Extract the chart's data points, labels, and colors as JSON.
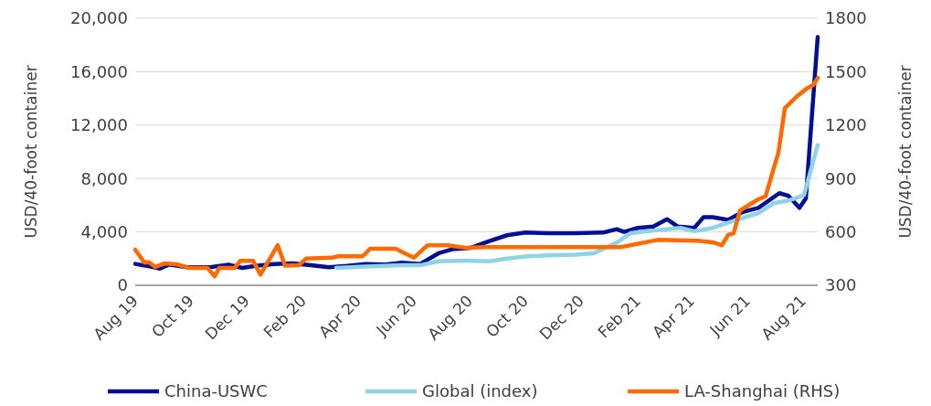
{
  "chart_data": {
    "type": "line",
    "ylabel": "USD/40-foot container",
    "y2label": "USD/40-foot container",
    "xlim": [
      "2019-08-01",
      "2021-08-17"
    ],
    "xticks": [
      {
        "value": "2019-08-01",
        "label": "Aug 19"
      },
      {
        "value": "2019-10-01",
        "label": "Oct 19"
      },
      {
        "value": "2019-12-01",
        "label": "Dec 19"
      },
      {
        "value": "2020-02-01",
        "label": "Feb 20"
      },
      {
        "value": "2020-04-01",
        "label": "Apr 20"
      },
      {
        "value": "2020-06-01",
        "label": "Jun 20"
      },
      {
        "value": "2020-08-01",
        "label": "Aug 20"
      },
      {
        "value": "2020-10-01",
        "label": "Oct 20"
      },
      {
        "value": "2020-12-01",
        "label": "Dec 20"
      },
      {
        "value": "2021-02-01",
        "label": "Feb 21"
      },
      {
        "value": "2021-04-01",
        "label": "Apr 21"
      },
      {
        "value": "2021-06-01",
        "label": "Jun 21"
      },
      {
        "value": "2021-08-01",
        "label": "Aug 21"
      }
    ],
    "ylim": [
      0,
      20000
    ],
    "yticks": [
      {
        "value": 0,
        "label": "0"
      },
      {
        "value": 4000,
        "label": "4,000"
      },
      {
        "value": 8000,
        "label": "8,000"
      },
      {
        "value": 12000,
        "label": "12,000"
      },
      {
        "value": 16000,
        "label": "16,000"
      },
      {
        "value": 20000,
        "label": "20,000"
      }
    ],
    "y2lim": [
      300,
      1800
    ],
    "y2ticks": [
      300,
      600,
      900,
      1200,
      1500,
      1800
    ],
    "grid": "y",
    "legend": "bottom",
    "marker": "none",
    "line_style": "solid",
    "series": [
      {
        "name": "China-USWC",
        "color": "#000f96",
        "x": [
          "2019-08-01",
          "2019-08-18",
          "2019-08-28",
          "2019-09-07",
          "2019-09-27",
          "2019-10-22",
          "2019-11-11",
          "2019-11-26",
          "2019-12-11",
          "2019-12-31",
          "2020-01-20",
          "2020-02-09",
          "2020-02-29",
          "2020-03-20",
          "2020-04-09",
          "2020-04-29",
          "2020-05-19",
          "2020-06-08",
          "2020-06-28",
          "2020-07-13",
          "2020-08-02",
          "2020-08-22",
          "2020-09-11",
          "2020-10-01",
          "2020-10-26",
          "2020-11-25",
          "2020-12-25",
          "2021-01-09",
          "2021-01-17",
          "2021-02-01",
          "2021-02-18",
          "2021-03-05",
          "2021-03-17",
          "2021-04-04",
          "2021-04-14",
          "2021-04-24",
          "2021-05-11",
          "2021-05-27",
          "2021-06-13",
          "2021-07-06",
          "2021-07-16",
          "2021-07-28",
          "2021-08-04",
          "2021-08-17"
        ],
        "values": [
          1600,
          1400,
          1250,
          1550,
          1350,
          1350,
          1550,
          1300,
          1450,
          1600,
          1650,
          1500,
          1350,
          1450,
          1600,
          1550,
          1700,
          1600,
          2400,
          2700,
          2800,
          3300,
          3750,
          3950,
          3900,
          3900,
          3950,
          4200,
          4000,
          4300,
          4400,
          4950,
          4400,
          4300,
          5100,
          5100,
          4900,
          5500,
          5800,
          6900,
          6700,
          5800,
          6500,
          18600
        ]
      },
      {
        "name": "Global (index)",
        "color": "#8fd3e8",
        "x": [
          "2020-03-08",
          "2020-04-09",
          "2020-05-19",
          "2020-06-08",
          "2020-06-28",
          "2020-07-28",
          "2020-08-22",
          "2020-09-11",
          "2020-10-01",
          "2020-10-26",
          "2020-11-25",
          "2020-12-15",
          "2021-01-09",
          "2021-01-24",
          "2021-02-18",
          "2021-03-05",
          "2021-03-20",
          "2021-04-04",
          "2021-04-24",
          "2021-05-27",
          "2021-06-13",
          "2021-06-30",
          "2021-07-16",
          "2021-08-02",
          "2021-08-17"
        ],
        "values": [
          1300,
          1400,
          1500,
          1500,
          1800,
          1850,
          1800,
          2000,
          2150,
          2250,
          2300,
          2400,
          3200,
          3900,
          4100,
          4200,
          4300,
          4050,
          4300,
          5050,
          5400,
          6150,
          6350,
          6750,
          10500
        ]
      },
      {
        "name": "LA-Shanghai (RHS)",
        "color": "#ff6a00",
        "axis": "y2",
        "x": [
          "2019-08-01",
          "2019-08-11",
          "2019-08-16",
          "2019-08-23",
          "2019-09-02",
          "2019-09-15",
          "2019-09-29",
          "2019-10-19",
          "2019-10-27",
          "2019-11-01",
          "2019-11-18",
          "2019-11-24",
          "2019-12-08",
          "2019-12-16",
          "2020-01-04",
          "2020-01-12",
          "2020-01-27",
          "2020-02-04",
          "2020-03-03",
          "2020-03-10",
          "2020-04-06",
          "2020-04-14",
          "2020-05-12",
          "2020-05-22",
          "2020-06-01",
          "2020-06-16",
          "2020-07-08",
          "2020-07-28",
          "2020-08-17",
          "2021-01-14",
          "2021-02-03",
          "2021-02-23",
          "2021-04-07",
          "2021-04-24",
          "2021-05-04",
          "2021-05-11",
          "2021-05-17",
          "2021-05-24",
          "2021-06-03",
          "2021-06-13",
          "2021-06-21",
          "2021-06-28",
          "2021-07-05",
          "2021-07-12",
          "2021-07-26",
          "2021-08-05",
          "2021-08-12",
          "2021-08-17"
        ],
        "values": [
          500,
          428,
          430,
          403,
          423,
          418,
          398,
          398,
          350,
          398,
          398,
          438,
          438,
          360,
          525,
          410,
          413,
          450,
          455,
          463,
          463,
          505,
          505,
          480,
          455,
          525,
          525,
          510,
          515,
          515,
          535,
          555,
          550,
          542,
          525,
          583,
          592,
          720,
          752,
          783,
          800,
          925,
          1045,
          1295,
          1365,
          1405,
          1425,
          1465
        ]
      }
    ]
  }
}
